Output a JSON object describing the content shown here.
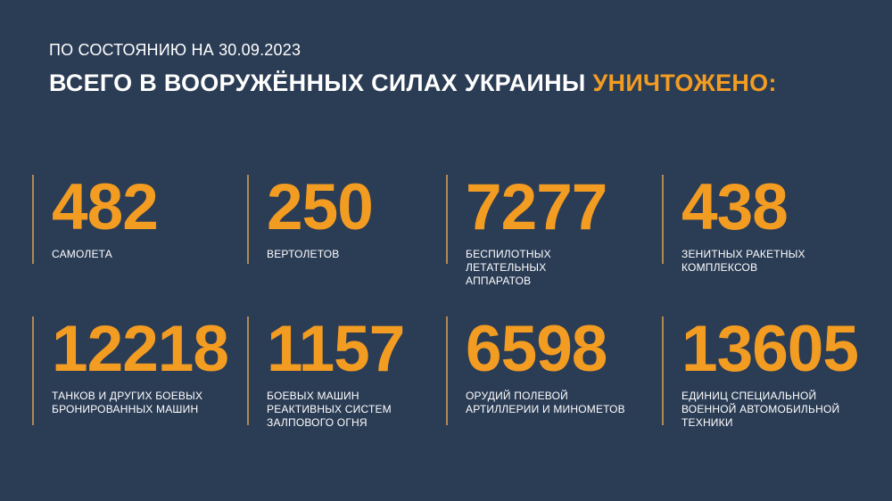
{
  "header": {
    "date_line": "ПО СОСТОЯНИЮ НА 30.09.2023",
    "title": "ВСЕГО В ВООРУЖЁННЫХ СИЛАХ УКРАИНЫ",
    "title_accent": "УНИЧТОЖЕНО:"
  },
  "colors": {
    "background": "#2b3c55",
    "accent": "#f39c22",
    "divider": "#b08a55"
  },
  "stats": [
    {
      "value": "482",
      "label": "САМОЛЕТА"
    },
    {
      "value": "250",
      "label": "ВЕРТОЛЕТОВ"
    },
    {
      "value": "7277",
      "label": "БЕСПИЛОТНЫХ ЛЕТАТЕЛЬНЫХ АППАРАТОВ"
    },
    {
      "value": "438",
      "label": "ЗЕНИТНЫХ РАКЕТНЫХ КОМПЛЕКСОВ"
    },
    {
      "value": "12218",
      "label": "ТАНКОВ И ДРУГИХ БОЕВЫХ БРОНИРОВАННЫХ МАШИН"
    },
    {
      "value": "1157",
      "label": "БОЕВЫХ МАШИН РЕАКТИВНЫХ СИСТЕМ ЗАЛПОВОГО ОГНЯ"
    },
    {
      "value": "6598",
      "label": "ОРУДИЙ ПОЛЕВОЙ АРТИЛЛЕРИИ И МИНОМЕТОВ"
    },
    {
      "value": "13605",
      "label": "ЕДИНИЦ СПЕЦИАЛЬНОЙ ВОЕННОЙ АВТОМОБИЛЬНОЙ ТЕХНИКИ"
    }
  ]
}
